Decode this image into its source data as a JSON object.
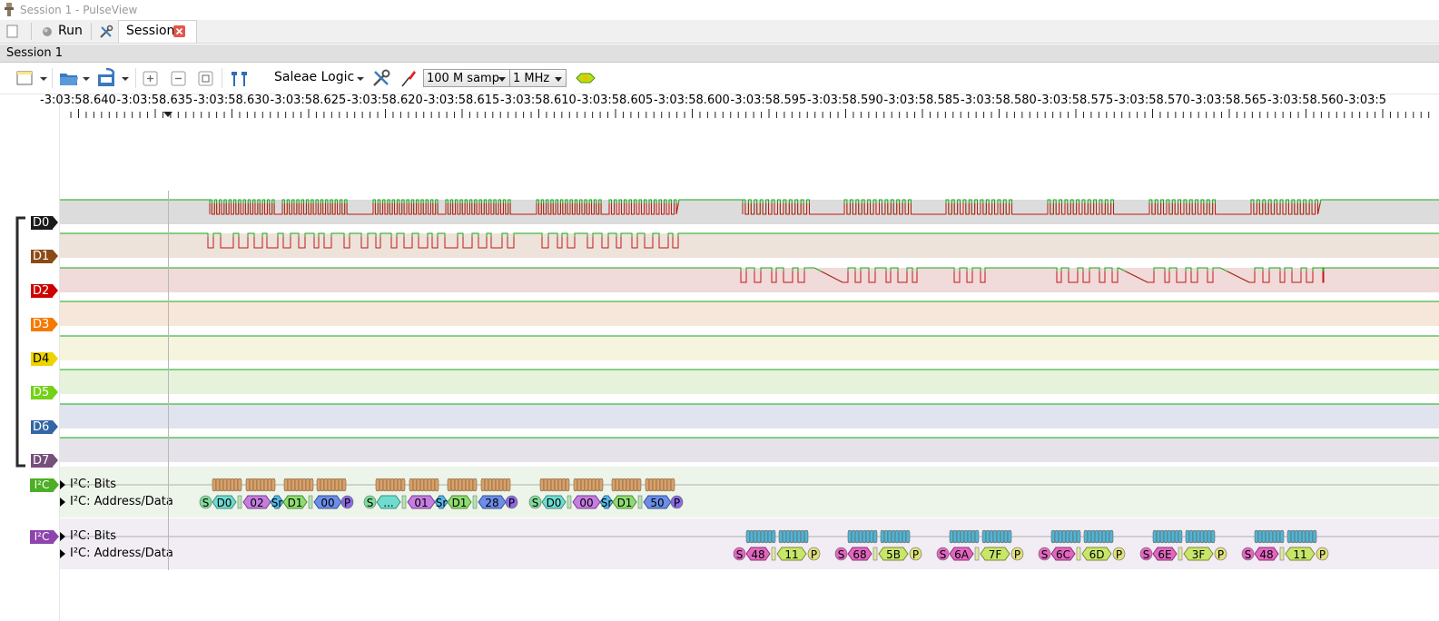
{
  "window": {
    "title": "Session 1 - PulseView"
  },
  "tabs": {
    "run_label": "Run",
    "session_tab_label": "Session"
  },
  "session": {
    "label": "Session 1"
  },
  "toolbar": {
    "device": "Saleae Logic",
    "sample_count": "100 M samp",
    "sample_rate": "1 MHz"
  },
  "ruler": {
    "ticks": [
      "-3:03:58.640",
      "-3:03:58.635",
      "-3:03:58.630",
      "-3:03:58.625",
      "-3:03:58.620",
      "-3:03:58.615",
      "-3:03:58.610",
      "-3:03:58.605",
      "-3:03:58.600",
      "-3:03:58.595",
      "-3:03:58.590",
      "-3:03:58.585",
      "-3:03:58.580",
      "-3:03:58.575",
      "-3:03:58.570",
      "-3:03:58.565",
      "-3:03:58.560",
      "-3:03:5"
    ]
  },
  "channels": [
    {
      "name": "D0",
      "color": "#1a1a1a",
      "text_color": "#ffffff"
    },
    {
      "name": "D1",
      "color": "#8b4a16",
      "text_color": "#ffffff"
    },
    {
      "name": "D2",
      "color": "#cc0000",
      "text_color": "#ffffff"
    },
    {
      "name": "D3",
      "color": "#f57900",
      "text_color": "#ffffff"
    },
    {
      "name": "D4",
      "color": "#edd400",
      "text_color": "#000000"
    },
    {
      "name": "D5",
      "color": "#73d216",
      "text_color": "#ffffff"
    },
    {
      "name": "D6",
      "color": "#3465a4",
      "text_color": "#ffffff"
    },
    {
      "name": "D7",
      "color": "#75507b",
      "text_color": "#ffffff"
    }
  ],
  "decoders": [
    {
      "tag": "I²C",
      "tag_color": "#4caf26",
      "rows": [
        "I²C: Bits",
        "I²C: Address/Data"
      ],
      "bits_color": "#d9a16a",
      "groups": [
        {
          "start": "S",
          "addr": "D0",
          "data": "02",
          "rs": "Sr",
          "addr2": "D1",
          "data2": "00",
          "stop": "P"
        },
        {
          "start": "S",
          "addr": "...",
          "data": "01",
          "rs": "Sr",
          "addr2": "D1",
          "data2": "28",
          "stop": "P"
        },
        {
          "start": "S",
          "addr": "D0",
          "data": "00",
          "rs": "Sr",
          "addr2": "D1",
          "data2": "50",
          "stop": "P"
        }
      ]
    },
    {
      "tag": "I²C",
      "tag_color": "#8e44ad",
      "rows": [
        "I²C: Bits",
        "I²C: Address/Data"
      ],
      "bits_color": "#4fb4d8",
      "groups": [
        {
          "start": "S",
          "addr": "48",
          "data": "11",
          "stop": "P"
        },
        {
          "start": "S",
          "addr": "68",
          "data": "5B",
          "stop": "P"
        },
        {
          "start": "S",
          "addr": "6A",
          "data": "7F",
          "stop": "P"
        },
        {
          "start": "S",
          "addr": "6C",
          "data": "6D",
          "stop": "P"
        },
        {
          "start": "S",
          "addr": "6E",
          "data": "3F",
          "stop": "P"
        },
        {
          "start": "S",
          "addr": "48",
          "data": "11",
          "stop": "P"
        }
      ]
    }
  ]
}
